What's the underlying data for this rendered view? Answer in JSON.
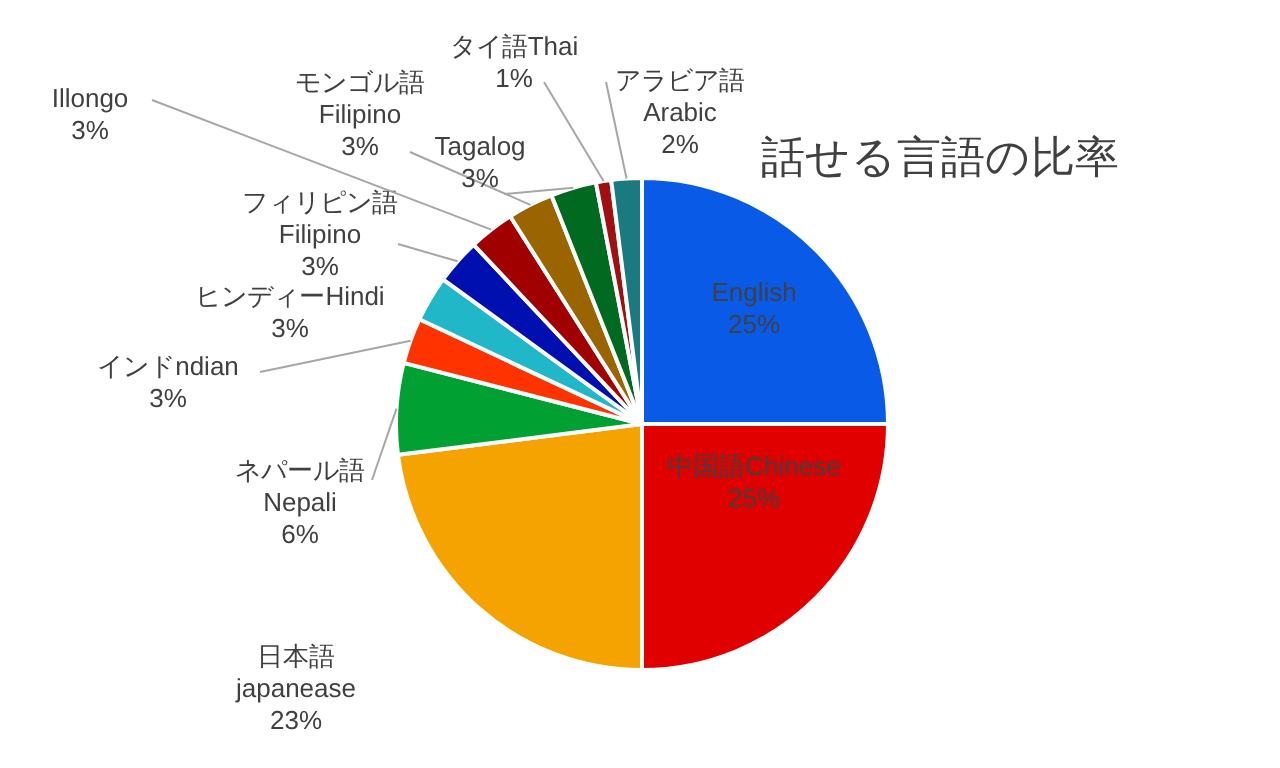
{
  "chart_data": {
    "type": "pie",
    "title": "話せる言語の比率",
    "categories": [
      "English",
      "中国語Chinese",
      "日本語\njapanease",
      "ネパール語\nNepali",
      "インドndian",
      "ヒンディーHindi",
      "フィリピン語\nFilipino",
      "Illongo",
      "モンゴル語\nFilipino",
      "Tagalog",
      "タイ語Thai",
      "アラビア語\nArabic"
    ],
    "values": [
      25,
      25,
      23,
      6,
      3,
      3,
      3,
      3,
      3,
      3,
      1,
      2
    ],
    "value_labels": [
      "25%",
      "25%",
      "23%",
      "6%",
      "3%",
      "3%",
      "3%",
      "3%",
      "3%",
      "3%",
      "1%",
      "2%"
    ],
    "colors": [
      "#0a5ae8",
      "#e00000",
      "#f5a300",
      "#00a032",
      "#ff3300",
      "#20b8c8",
      "#0010b0",
      "#a00000",
      "#9a6400",
      "#006a20",
      "#a01010",
      "#1a7a80"
    ],
    "legend": false
  }
}
